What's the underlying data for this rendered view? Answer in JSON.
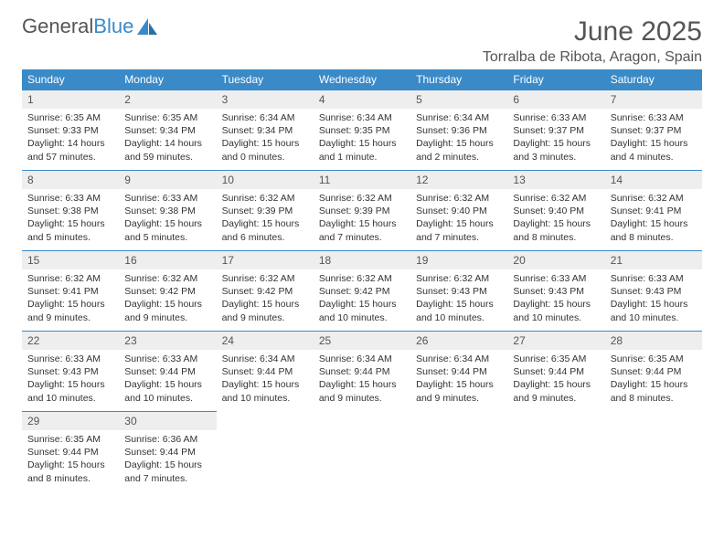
{
  "brand": {
    "word1": "General",
    "word2": "Blue"
  },
  "title": "June 2025",
  "location": "Torralba de Ribota, Aragon, Spain",
  "colors": {
    "header_bg": "#3a8ac8",
    "header_fg": "#ffffff",
    "daynum_bg": "#eeeeee",
    "daynum_fg": "#555555",
    "border": "#3a8ac8",
    "text": "#333333",
    "title_fg": "#555555"
  },
  "weekdays": [
    "Sunday",
    "Monday",
    "Tuesday",
    "Wednesday",
    "Thursday",
    "Friday",
    "Saturday"
  ],
  "weeks": [
    [
      {
        "n": "1",
        "sr": "Sunrise: 6:35 AM",
        "ss": "Sunset: 9:33 PM",
        "d1": "Daylight: 14 hours",
        "d2": "and 57 minutes."
      },
      {
        "n": "2",
        "sr": "Sunrise: 6:35 AM",
        "ss": "Sunset: 9:34 PM",
        "d1": "Daylight: 14 hours",
        "d2": "and 59 minutes."
      },
      {
        "n": "3",
        "sr": "Sunrise: 6:34 AM",
        "ss": "Sunset: 9:34 PM",
        "d1": "Daylight: 15 hours",
        "d2": "and 0 minutes."
      },
      {
        "n": "4",
        "sr": "Sunrise: 6:34 AM",
        "ss": "Sunset: 9:35 PM",
        "d1": "Daylight: 15 hours",
        "d2": "and 1 minute."
      },
      {
        "n": "5",
        "sr": "Sunrise: 6:34 AM",
        "ss": "Sunset: 9:36 PM",
        "d1": "Daylight: 15 hours",
        "d2": "and 2 minutes."
      },
      {
        "n": "6",
        "sr": "Sunrise: 6:33 AM",
        "ss": "Sunset: 9:37 PM",
        "d1": "Daylight: 15 hours",
        "d2": "and 3 minutes."
      },
      {
        "n": "7",
        "sr": "Sunrise: 6:33 AM",
        "ss": "Sunset: 9:37 PM",
        "d1": "Daylight: 15 hours",
        "d2": "and 4 minutes."
      }
    ],
    [
      {
        "n": "8",
        "sr": "Sunrise: 6:33 AM",
        "ss": "Sunset: 9:38 PM",
        "d1": "Daylight: 15 hours",
        "d2": "and 5 minutes."
      },
      {
        "n": "9",
        "sr": "Sunrise: 6:33 AM",
        "ss": "Sunset: 9:38 PM",
        "d1": "Daylight: 15 hours",
        "d2": "and 5 minutes."
      },
      {
        "n": "10",
        "sr": "Sunrise: 6:32 AM",
        "ss": "Sunset: 9:39 PM",
        "d1": "Daylight: 15 hours",
        "d2": "and 6 minutes."
      },
      {
        "n": "11",
        "sr": "Sunrise: 6:32 AM",
        "ss": "Sunset: 9:39 PM",
        "d1": "Daylight: 15 hours",
        "d2": "and 7 minutes."
      },
      {
        "n": "12",
        "sr": "Sunrise: 6:32 AM",
        "ss": "Sunset: 9:40 PM",
        "d1": "Daylight: 15 hours",
        "d2": "and 7 minutes."
      },
      {
        "n": "13",
        "sr": "Sunrise: 6:32 AM",
        "ss": "Sunset: 9:40 PM",
        "d1": "Daylight: 15 hours",
        "d2": "and 8 minutes."
      },
      {
        "n": "14",
        "sr": "Sunrise: 6:32 AM",
        "ss": "Sunset: 9:41 PM",
        "d1": "Daylight: 15 hours",
        "d2": "and 8 minutes."
      }
    ],
    [
      {
        "n": "15",
        "sr": "Sunrise: 6:32 AM",
        "ss": "Sunset: 9:41 PM",
        "d1": "Daylight: 15 hours",
        "d2": "and 9 minutes."
      },
      {
        "n": "16",
        "sr": "Sunrise: 6:32 AM",
        "ss": "Sunset: 9:42 PM",
        "d1": "Daylight: 15 hours",
        "d2": "and 9 minutes."
      },
      {
        "n": "17",
        "sr": "Sunrise: 6:32 AM",
        "ss": "Sunset: 9:42 PM",
        "d1": "Daylight: 15 hours",
        "d2": "and 9 minutes."
      },
      {
        "n": "18",
        "sr": "Sunrise: 6:32 AM",
        "ss": "Sunset: 9:42 PM",
        "d1": "Daylight: 15 hours",
        "d2": "and 10 minutes."
      },
      {
        "n": "19",
        "sr": "Sunrise: 6:32 AM",
        "ss": "Sunset: 9:43 PM",
        "d1": "Daylight: 15 hours",
        "d2": "and 10 minutes."
      },
      {
        "n": "20",
        "sr": "Sunrise: 6:33 AM",
        "ss": "Sunset: 9:43 PM",
        "d1": "Daylight: 15 hours",
        "d2": "and 10 minutes."
      },
      {
        "n": "21",
        "sr": "Sunrise: 6:33 AM",
        "ss": "Sunset: 9:43 PM",
        "d1": "Daylight: 15 hours",
        "d2": "and 10 minutes."
      }
    ],
    [
      {
        "n": "22",
        "sr": "Sunrise: 6:33 AM",
        "ss": "Sunset: 9:43 PM",
        "d1": "Daylight: 15 hours",
        "d2": "and 10 minutes."
      },
      {
        "n": "23",
        "sr": "Sunrise: 6:33 AM",
        "ss": "Sunset: 9:44 PM",
        "d1": "Daylight: 15 hours",
        "d2": "and 10 minutes."
      },
      {
        "n": "24",
        "sr": "Sunrise: 6:34 AM",
        "ss": "Sunset: 9:44 PM",
        "d1": "Daylight: 15 hours",
        "d2": "and 10 minutes."
      },
      {
        "n": "25",
        "sr": "Sunrise: 6:34 AM",
        "ss": "Sunset: 9:44 PM",
        "d1": "Daylight: 15 hours",
        "d2": "and 9 minutes."
      },
      {
        "n": "26",
        "sr": "Sunrise: 6:34 AM",
        "ss": "Sunset: 9:44 PM",
        "d1": "Daylight: 15 hours",
        "d2": "and 9 minutes."
      },
      {
        "n": "27",
        "sr": "Sunrise: 6:35 AM",
        "ss": "Sunset: 9:44 PM",
        "d1": "Daylight: 15 hours",
        "d2": "and 9 minutes."
      },
      {
        "n": "28",
        "sr": "Sunrise: 6:35 AM",
        "ss": "Sunset: 9:44 PM",
        "d1": "Daylight: 15 hours",
        "d2": "and 8 minutes."
      }
    ],
    [
      {
        "n": "29",
        "sr": "Sunrise: 6:35 AM",
        "ss": "Sunset: 9:44 PM",
        "d1": "Daylight: 15 hours",
        "d2": "and 8 minutes."
      },
      {
        "n": "30",
        "sr": "Sunrise: 6:36 AM",
        "ss": "Sunset: 9:44 PM",
        "d1": "Daylight: 15 hours",
        "d2": "and 7 minutes."
      },
      null,
      null,
      null,
      null,
      null
    ]
  ]
}
